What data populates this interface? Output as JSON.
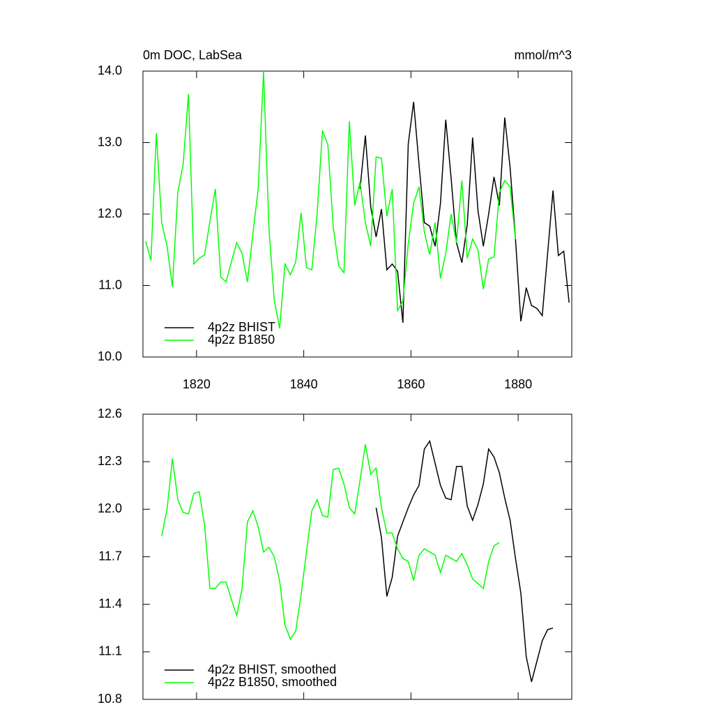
{
  "chart_data": [
    {
      "type": "line",
      "title": "0m DOC, LabSea",
      "subtitle": "mmol/m^3",
      "xlim": [
        1810,
        1890
      ],
      "xticks": [
        1820,
        1840,
        1860,
        1880
      ],
      "ylim": [
        10,
        14
      ],
      "yticks": [
        {
          "value": 10,
          "label": "10.0"
        },
        {
          "value": 11,
          "label": "11.0"
        },
        {
          "value": 12,
          "label": "12.0"
        },
        {
          "value": 13,
          "label": "13.0"
        },
        {
          "value": 14,
          "label": "14.0"
        }
      ],
      "legend": "lower left",
      "series": [
        {
          "name": "4p2z BHIST",
          "color": "#000000",
          "x": [
            1850.5,
            1851.5,
            1852.5,
            1853.5,
            1854.5,
            1855.5,
            1856.5,
            1857.5,
            1858.5,
            1859.5,
            1860.5,
            1861.5,
            1862.5,
            1863.5,
            1864.5,
            1865.5,
            1866.5,
            1867.5,
            1868.5,
            1869.5,
            1870.5,
            1871.5,
            1872.5,
            1873.5,
            1874.5,
            1875.5,
            1876.5,
            1877.5,
            1878.5,
            1879.5,
            1880.5,
            1881.5,
            1882.5,
            1883.5,
            1884.5,
            1885.5,
            1886.5,
            1887.5,
            1888.5,
            1889.5
          ],
          "values": [
            12.35,
            13.1,
            12.1,
            11.68,
            12.07,
            11.22,
            11.3,
            11.2,
            10.48,
            12.98,
            13.57,
            12.7,
            11.88,
            11.83,
            11.55,
            12.15,
            13.32,
            12.5,
            11.6,
            11.32,
            11.85,
            13.07,
            12.05,
            11.55,
            12.0,
            12.52,
            12.12,
            13.35,
            12.65,
            11.65,
            10.5,
            10.97,
            10.72,
            10.68,
            10.58,
            11.45,
            12.33,
            11.42,
            11.48,
            10.76
          ]
        },
        {
          "name": "4p2z B1850",
          "color": "#00ff00",
          "x": [
            1810.5,
            1811.5,
            1812.5,
            1813.5,
            1814.5,
            1815.5,
            1816.5,
            1817.5,
            1818.5,
            1819.5,
            1820.5,
            1821.5,
            1822.5,
            1823.5,
            1824.5,
            1825.5,
            1826.5,
            1827.5,
            1828.5,
            1829.5,
            1830.5,
            1831.5,
            1832.5,
            1833.5,
            1834.5,
            1835.5,
            1836.5,
            1837.5,
            1838.5,
            1839.5,
            1840.5,
            1841.5,
            1842.5,
            1843.5,
            1844.5,
            1845.5,
            1846.5,
            1847.5,
            1848.5,
            1849.5,
            1850.5,
            1851.5,
            1852.5,
            1853.5,
            1854.5,
            1855.5,
            1856.5,
            1857.5,
            1858.5,
            1859.5,
            1860.5,
            1861.5,
            1862.5,
            1863.5,
            1864.5,
            1865.5,
            1866.5,
            1867.5,
            1868.5,
            1869.5,
            1870.5,
            1871.5,
            1872.5,
            1873.5,
            1874.5,
            1875.5,
            1876.5,
            1877.5,
            1878.5,
            1879.5
          ],
          "values": [
            11.62,
            11.35,
            13.13,
            11.88,
            11.55,
            10.98,
            12.3,
            12.7,
            13.68,
            11.3,
            11.38,
            11.43,
            11.9,
            12.35,
            11.12,
            11.05,
            11.33,
            11.6,
            11.45,
            11.05,
            11.72,
            12.35,
            14.0,
            11.8,
            10.8,
            10.4,
            11.3,
            11.15,
            11.33,
            12.02,
            11.25,
            11.22,
            12.0,
            13.17,
            12.97,
            11.82,
            11.28,
            11.18,
            13.3,
            12.12,
            12.45,
            11.88,
            11.55,
            12.8,
            12.78,
            11.97,
            12.35,
            10.65,
            10.78,
            11.58,
            12.15,
            12.38,
            11.75,
            11.43,
            11.88,
            11.1,
            11.45,
            12.0,
            11.6,
            12.47,
            11.38,
            11.65,
            11.5,
            10.95,
            11.37,
            11.4,
            12.3,
            12.47,
            12.38,
            11.65
          ]
        }
      ]
    },
    {
      "type": "line",
      "xlim": [
        1810,
        1890
      ],
      "ylim": [
        10.8,
        12.6
      ],
      "yticks": [
        10.8,
        11.1,
        11.4,
        11.7,
        {
          "value": 12,
          "label": "12.0"
        },
        12.3,
        12.6
      ],
      "legend": "lower left",
      "series": [
        {
          "name": "4p2z BHIST, smoothed",
          "color": "#000000",
          "x": [
            1853.5,
            1854.5,
            1855.5,
            1856.5,
            1857.5,
            1858.5,
            1859.5,
            1860.5,
            1861.5,
            1862.5,
            1863.5,
            1864.5,
            1865.5,
            1866.5,
            1867.5,
            1868.5,
            1869.5,
            1870.5,
            1871.5,
            1872.5,
            1873.5,
            1874.5,
            1875.5,
            1876.5,
            1877.5,
            1878.5,
            1879.5,
            1880.5,
            1881.5,
            1882.5,
            1883.5,
            1884.5,
            1885.5,
            1886.5
          ],
          "values": [
            12.01,
            11.82,
            11.45,
            11.57,
            11.83,
            11.92,
            12.01,
            12.09,
            12.15,
            12.38,
            12.43,
            12.29,
            12.15,
            12.07,
            12.06,
            12.27,
            12.27,
            12.02,
            11.93,
            12.03,
            12.16,
            12.38,
            12.33,
            12.23,
            12.07,
            11.93,
            11.69,
            11.47,
            11.07,
            10.91,
            11.04,
            11.17,
            11.24,
            11.25
          ]
        },
        {
          "name": "4p2z B1850, smoothed",
          "color": "#00ff00",
          "x": [
            1813.5,
            1814.5,
            1815.5,
            1816.5,
            1817.5,
            1818.5,
            1819.5,
            1820.5,
            1821.5,
            1822.5,
            1823.5,
            1824.5,
            1825.5,
            1826.5,
            1827.5,
            1828.5,
            1829.5,
            1830.5,
            1831.5,
            1832.5,
            1833.5,
            1834.5,
            1835.5,
            1836.5,
            1837.5,
            1838.5,
            1839.5,
            1840.5,
            1841.5,
            1842.5,
            1843.5,
            1844.5,
            1845.5,
            1846.5,
            1847.5,
            1848.5,
            1849.5,
            1850.5,
            1851.5,
            1852.5,
            1853.5,
            1854.5,
            1855.5,
            1856.5,
            1857.5,
            1858.5,
            1859.5,
            1860.5,
            1861.5,
            1862.5,
            1863.5,
            1864.5,
            1865.5,
            1866.5,
            1867.5,
            1868.5,
            1869.5,
            1870.5,
            1871.5,
            1872.5,
            1873.5,
            1874.5,
            1875.5,
            1876.5
          ],
          "values": [
            11.83,
            12.0,
            12.32,
            12.06,
            11.98,
            11.97,
            12.1,
            12.11,
            11.9,
            11.5,
            11.5,
            11.54,
            11.54,
            11.43,
            11.33,
            11.5,
            11.92,
            11.99,
            11.89,
            11.73,
            11.76,
            11.7,
            11.55,
            11.27,
            11.18,
            11.23,
            11.46,
            11.73,
            11.99,
            12.06,
            11.96,
            11.95,
            12.25,
            12.26,
            12.16,
            12.01,
            11.97,
            12.18,
            12.41,
            12.22,
            12.26,
            12.01,
            11.85,
            11.85,
            11.75,
            11.69,
            11.67,
            11.55,
            11.71,
            11.75,
            11.73,
            11.71,
            11.6,
            11.71,
            11.69,
            11.67,
            11.72,
            11.65,
            11.56,
            11.53,
            11.5,
            11.67,
            11.77,
            11.79
          ]
        }
      ]
    }
  ]
}
